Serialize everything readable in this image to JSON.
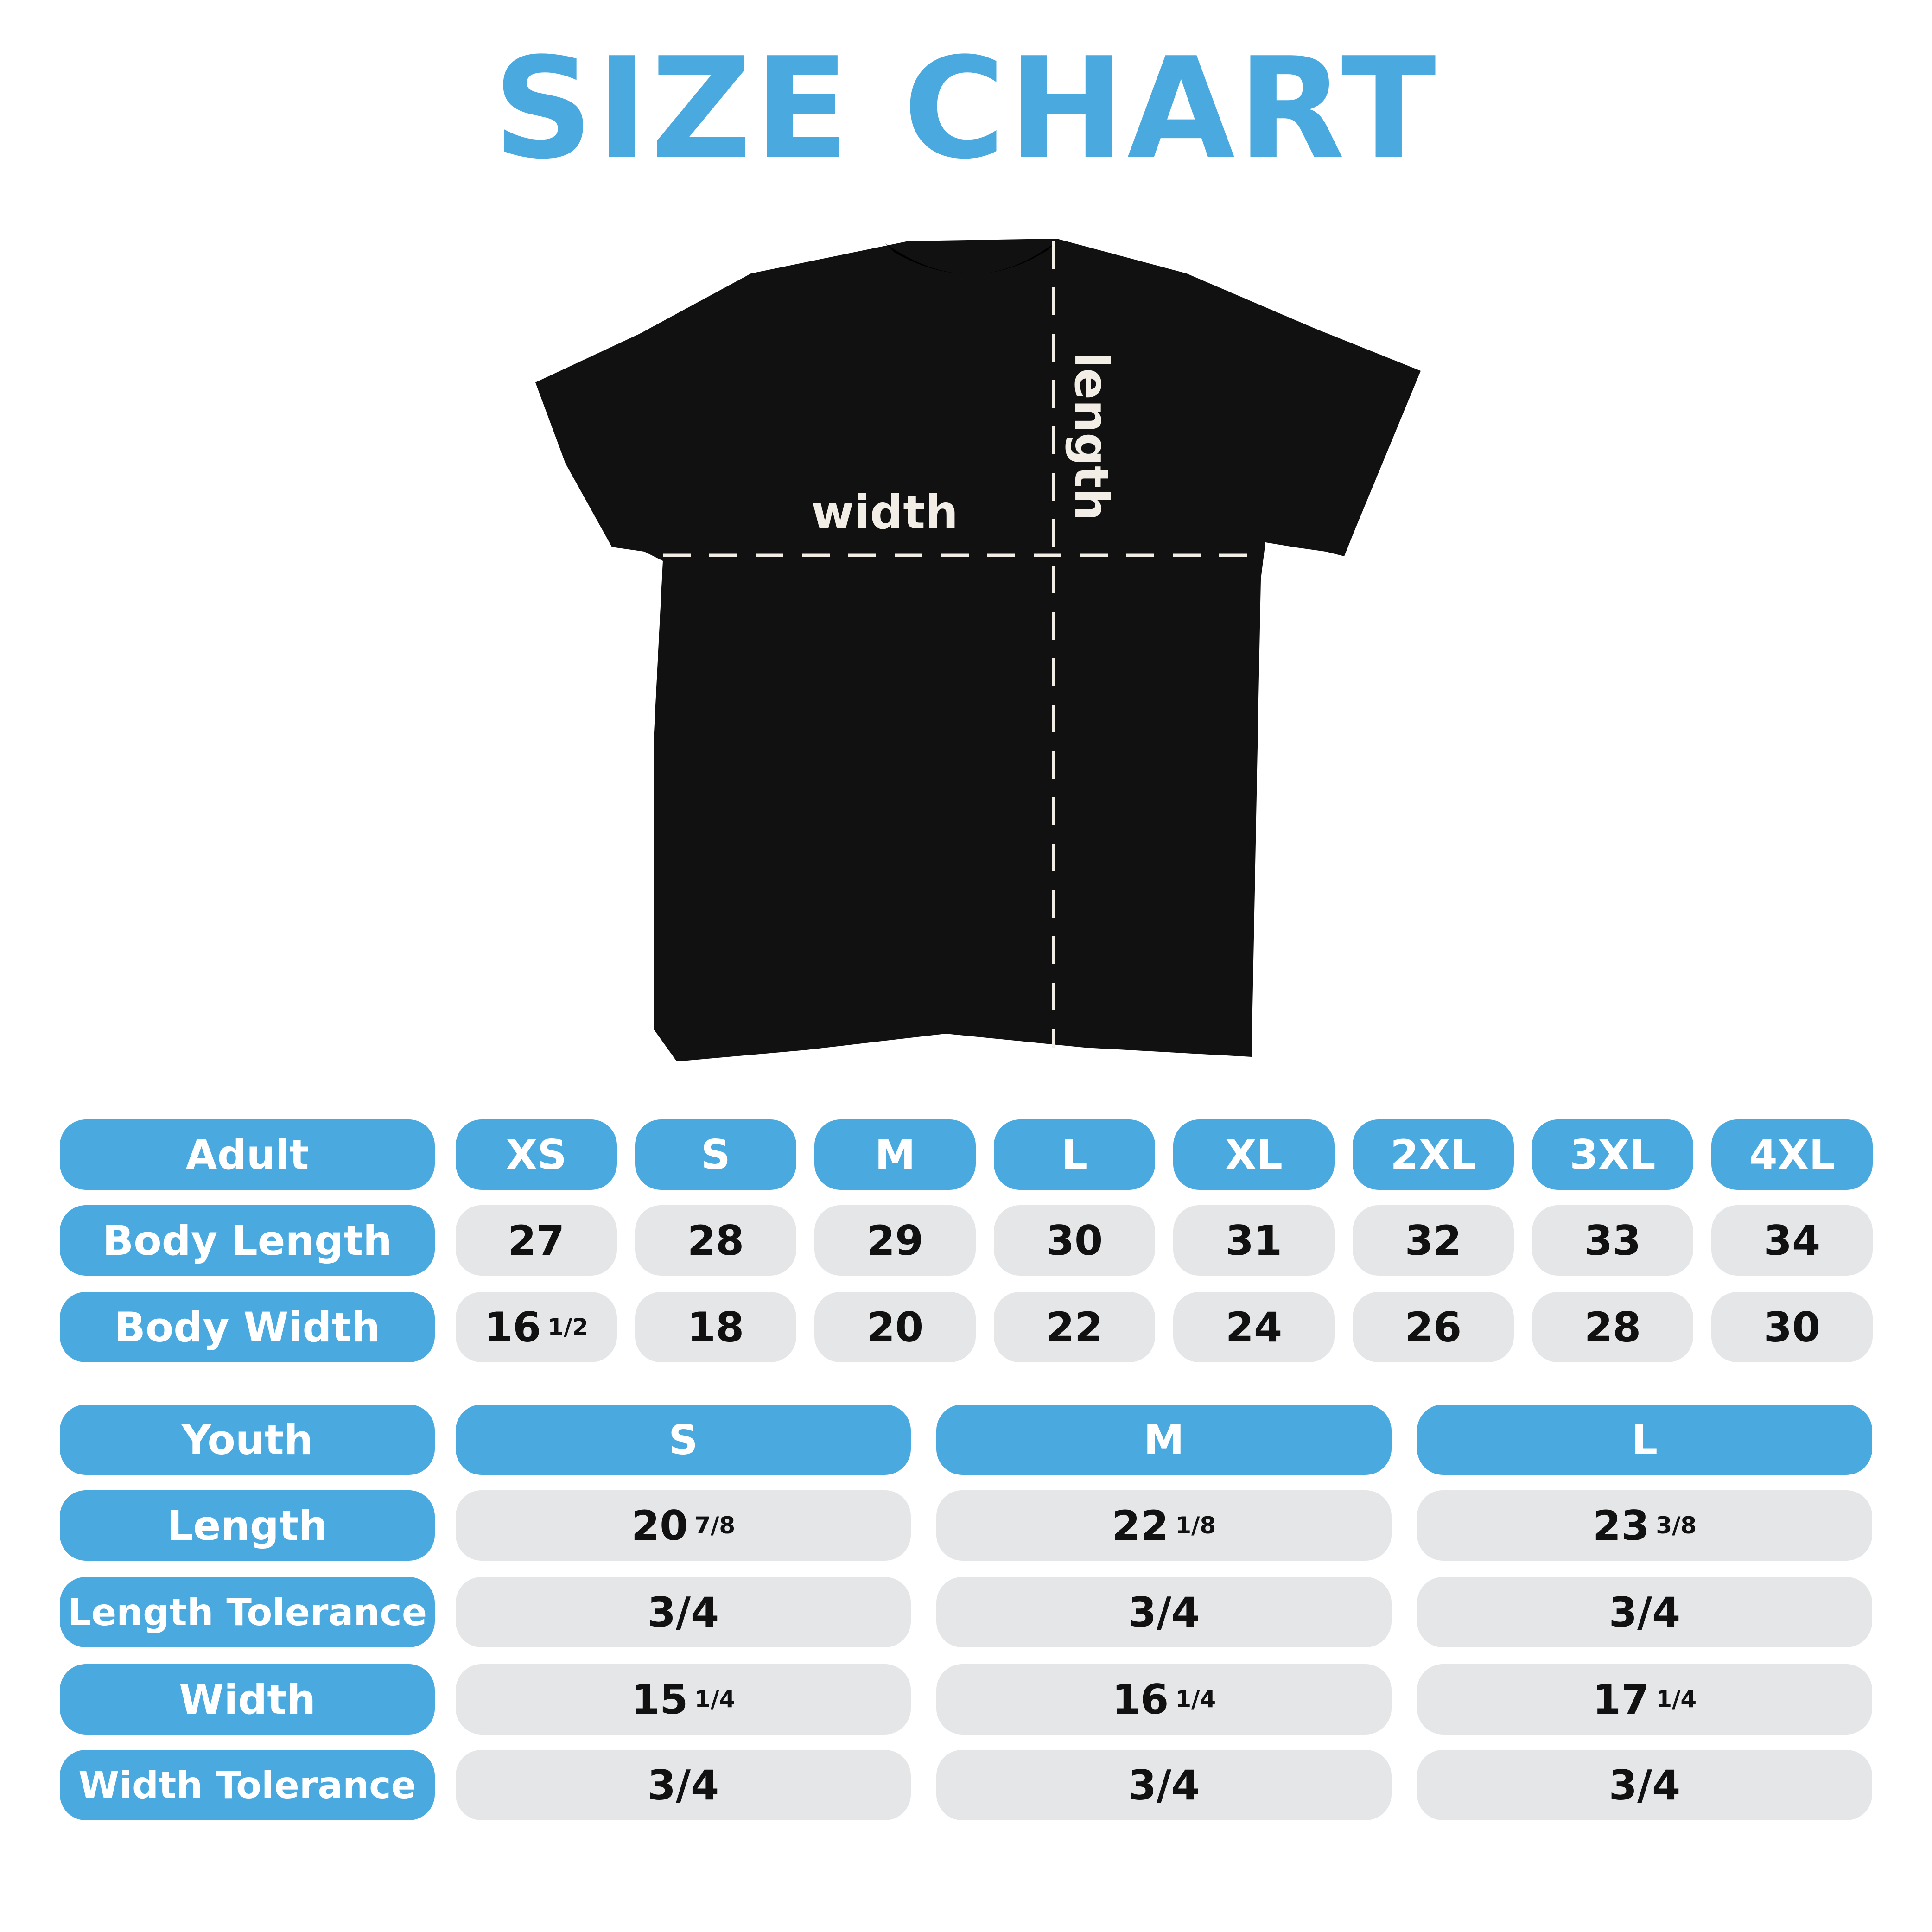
{
  "title": "SIZE CHART",
  "colors": {
    "accent": "#4aa9de",
    "cell_bg": "#e5e6e8",
    "shirt": "#111111"
  },
  "diagram": {
    "width_label": "width",
    "length_label": "length"
  },
  "adult": {
    "header": "Adult",
    "sizes": [
      "XS",
      "S",
      "M",
      "L",
      "XL",
      "2XL",
      "3XL",
      "4XL"
    ],
    "rows": [
      {
        "label": "Body Length",
        "values": [
          [
            "27",
            ""
          ],
          [
            "28",
            ""
          ],
          [
            "29",
            ""
          ],
          [
            "30",
            ""
          ],
          [
            "31",
            ""
          ],
          [
            "32",
            ""
          ],
          [
            "33",
            ""
          ],
          [
            "34",
            ""
          ]
        ]
      },
      {
        "label": "Body Width",
        "values": [
          [
            "16",
            "1/2"
          ],
          [
            "18",
            ""
          ],
          [
            "20",
            ""
          ],
          [
            "22",
            ""
          ],
          [
            "24",
            ""
          ],
          [
            "26",
            ""
          ],
          [
            "28",
            ""
          ],
          [
            "30",
            ""
          ]
        ]
      }
    ]
  },
  "youth": {
    "header": "Youth",
    "sizes": [
      "S",
      "M",
      "L"
    ],
    "rows": [
      {
        "label": "Length",
        "values": [
          [
            "20",
            "7/8"
          ],
          [
            "22",
            "1/8"
          ],
          [
            "23",
            "3/8"
          ]
        ]
      },
      {
        "label": "Length Tolerance",
        "values": [
          [
            "3/4",
            ""
          ],
          [
            "3/4",
            ""
          ],
          [
            "3/4",
            ""
          ]
        ]
      },
      {
        "label": "Width",
        "values": [
          [
            "15",
            "1/4"
          ],
          [
            "16",
            "1/4"
          ],
          [
            "17",
            "1/4"
          ]
        ]
      },
      {
        "label": "Width Tolerance",
        "values": [
          [
            "3/4",
            ""
          ],
          [
            "3/4",
            ""
          ],
          [
            "3/4",
            ""
          ]
        ]
      }
    ]
  }
}
